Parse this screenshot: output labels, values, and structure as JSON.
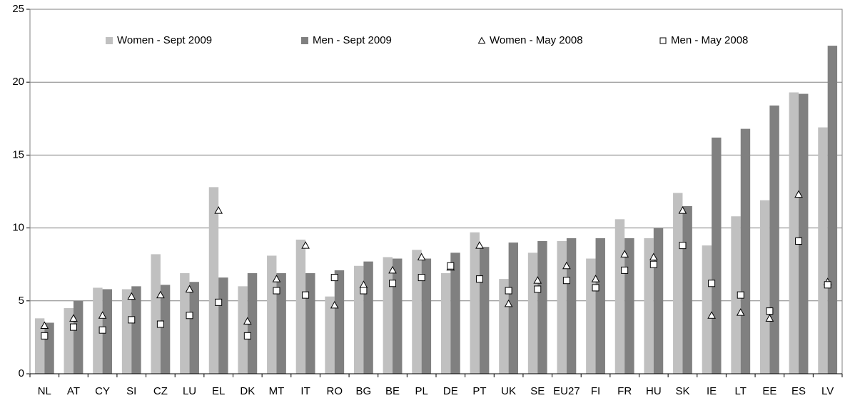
{
  "chart_data": {
    "type": "bar",
    "categories": [
      "NL",
      "AT",
      "CY",
      "SI",
      "CZ",
      "LU",
      "EL",
      "DK",
      "MT",
      "IT",
      "RO",
      "BG",
      "BE",
      "PL",
      "DE",
      "PT",
      "UK",
      "SE",
      "EU27",
      "FI",
      "FR",
      "HU",
      "SK",
      "IE",
      "LT",
      "EE",
      "ES",
      "LV"
    ],
    "series": [
      {
        "name": "Women - Sept 2009",
        "color": "#c0c0c0",
        "marker": "bar",
        "values": [
          3.8,
          4.5,
          5.9,
          5.8,
          8.2,
          6.9,
          12.8,
          6.0,
          8.1,
          9.2,
          5.3,
          7.4,
          8.0,
          8.5,
          6.9,
          9.7,
          6.5,
          8.3,
          9.1,
          7.9,
          10.6,
          9.3,
          12.4,
          8.8,
          10.8,
          11.9,
          19.3,
          16.9
        ]
      },
      {
        "name": "Men - Sept 2009",
        "color": "#808080",
        "marker": "bar",
        "values": [
          3.5,
          5.0,
          5.8,
          6.0,
          6.1,
          6.3,
          6.6,
          6.9,
          6.9,
          6.9,
          7.1,
          7.7,
          7.9,
          7.9,
          8.3,
          8.7,
          9.0,
          9.1,
          9.3,
          9.3,
          9.3,
          10.0,
          11.5,
          16.2,
          16.8,
          18.4,
          19.2,
          22.5
        ]
      },
      {
        "name": "Women - May 2008",
        "color": "#000000",
        "marker": "triangle",
        "values": [
          3.3,
          3.8,
          4.0,
          5.3,
          5.4,
          5.8,
          11.2,
          3.6,
          6.5,
          8.8,
          4.7,
          6.1,
          7.1,
          8.0,
          7.3,
          8.8,
          4.8,
          6.4,
          7.4,
          6.5,
          8.2,
          8.0,
          11.2,
          4.0,
          4.2,
          3.8,
          12.3,
          6.3
        ]
      },
      {
        "name": "Men - May 2008",
        "color": "#000000",
        "marker": "square",
        "values": [
          2.6,
          3.2,
          3.0,
          3.7,
          3.4,
          4.0,
          4.9,
          2.6,
          5.7,
          5.4,
          6.6,
          5.7,
          6.2,
          6.6,
          7.4,
          6.5,
          5.7,
          5.8,
          6.4,
          5.9,
          7.1,
          7.5,
          8.8,
          6.2,
          5.4,
          4.3,
          9.1,
          6.1
        ]
      }
    ],
    "ylim": [
      0,
      25
    ],
    "yticks": [
      0,
      5,
      10,
      15,
      20,
      25
    ],
    "grid": true
  }
}
